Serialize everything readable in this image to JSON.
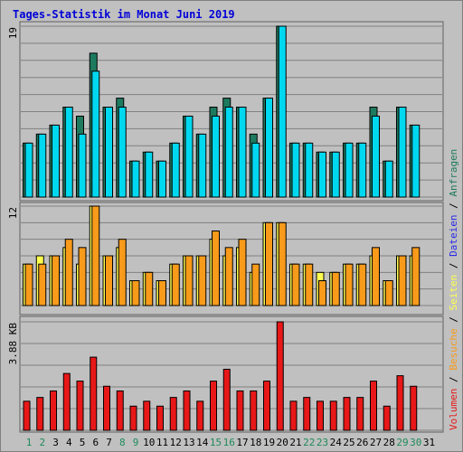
{
  "title": "Tages-Statistik im Monat Juni 2019",
  "colors": {
    "anfragen": "#1e7a5e",
    "dateien": "#00d8f0",
    "seiten": "#ffff50",
    "besuche": "#f89a1a",
    "volumen": "#e81818",
    "weekend_label": "#1e8a5a",
    "weekday_label": "#000000",
    "legend_separator": "#000000"
  },
  "chart_data": [
    {
      "type": "bar",
      "panel": "top",
      "ytick_label": "19",
      "ylim": [
        0,
        19
      ],
      "categories": [
        "1",
        "2",
        "3",
        "4",
        "5",
        "6",
        "7",
        "8",
        "9",
        "10",
        "11",
        "12",
        "13",
        "14",
        "15",
        "16",
        "17",
        "18",
        "19",
        "20",
        "21",
        "22",
        "23",
        "24",
        "25",
        "26",
        "27",
        "28",
        "29",
        "30",
        "31"
      ],
      "series": [
        {
          "name": "Anfragen",
          "values": [
            6,
            7,
            8,
            10,
            9,
            16,
            10,
            11,
            4,
            5,
            4,
            6,
            9,
            7,
            10,
            11,
            10,
            7,
            11,
            19,
            6,
            6,
            5,
            5,
            6,
            6,
            10,
            4,
            10,
            8,
            null
          ]
        },
        {
          "name": "Dateien",
          "values": [
            6,
            7,
            8,
            10,
            7,
            14,
            10,
            10,
            4,
            5,
            4,
            6,
            9,
            7,
            9,
            10,
            10,
            6,
            11,
            19,
            6,
            6,
            5,
            5,
            6,
            6,
            9,
            4,
            10,
            8,
            null
          ]
        }
      ]
    },
    {
      "type": "bar",
      "panel": "middle",
      "ytick_label": "12",
      "ylim": [
        0,
        12
      ],
      "categories": [
        "1",
        "2",
        "3",
        "4",
        "5",
        "6",
        "7",
        "8",
        "9",
        "10",
        "11",
        "12",
        "13",
        "14",
        "15",
        "16",
        "17",
        "18",
        "19",
        "20",
        "21",
        "22",
        "23",
        "24",
        "25",
        "26",
        "27",
        "28",
        "29",
        "30",
        "31"
      ],
      "series": [
        {
          "name": "Seiten",
          "values": [
            5,
            6,
            6,
            7,
            5,
            12,
            6,
            7,
            3,
            4,
            3,
            5,
            6,
            6,
            8,
            6,
            7,
            4,
            10,
            10,
            5,
            5,
            4,
            4,
            5,
            5,
            6,
            3,
            6,
            6,
            null
          ]
        },
        {
          "name": "Besuche",
          "values": [
            5,
            5,
            6,
            8,
            7,
            12,
            6,
            8,
            3,
            4,
            3,
            5,
            6,
            6,
            9,
            7,
            8,
            5,
            10,
            10,
            5,
            5,
            3,
            4,
            5,
            5,
            7,
            3,
            6,
            7,
            null
          ]
        }
      ]
    },
    {
      "type": "bar",
      "panel": "bottom",
      "ytick_label": "3.88 KB",
      "ylim": [
        0,
        4.85
      ],
      "categories": [
        "1",
        "2",
        "3",
        "4",
        "5",
        "6",
        "7",
        "8",
        "9",
        "10",
        "11",
        "12",
        "13",
        "14",
        "15",
        "16",
        "17",
        "18",
        "19",
        "20",
        "21",
        "22",
        "23",
        "24",
        "25",
        "26",
        "27",
        "28",
        "29",
        "30",
        "31"
      ],
      "series": [
        {
          "name": "Volumen",
          "values": [
            1.3,
            1.47,
            1.76,
            2.54,
            2.2,
            3.27,
            1.97,
            1.76,
            1.08,
            1.3,
            1.08,
            1.47,
            1.76,
            1.3,
            2.2,
            2.73,
            1.76,
            1.76,
            2.2,
            4.85,
            1.3,
            1.47,
            1.3,
            1.3,
            1.47,
            1.47,
            2.2,
            1.08,
            2.44,
            1.97,
            null
          ]
        }
      ]
    }
  ],
  "x_labels": [
    {
      "text": "1",
      "weekend": true
    },
    {
      "text": "2",
      "weekend": true
    },
    {
      "text": "3",
      "weekend": false
    },
    {
      "text": "4",
      "weekend": false
    },
    {
      "text": "5",
      "weekend": false
    },
    {
      "text": "6",
      "weekend": false
    },
    {
      "text": "7",
      "weekend": false
    },
    {
      "text": "8",
      "weekend": true
    },
    {
      "text": "9",
      "weekend": true
    },
    {
      "text": "10",
      "weekend": false
    },
    {
      "text": "11",
      "weekend": false
    },
    {
      "text": "12",
      "weekend": false
    },
    {
      "text": "13",
      "weekend": false
    },
    {
      "text": "14",
      "weekend": false
    },
    {
      "text": "15",
      "weekend": true
    },
    {
      "text": "16",
      "weekend": true
    },
    {
      "text": "17",
      "weekend": false
    },
    {
      "text": "18",
      "weekend": false
    },
    {
      "text": "19",
      "weekend": false
    },
    {
      "text": "20",
      "weekend": false
    },
    {
      "text": "21",
      "weekend": false
    },
    {
      "text": "22",
      "weekend": true
    },
    {
      "text": "23",
      "weekend": true
    },
    {
      "text": "24",
      "weekend": false
    },
    {
      "text": "25",
      "weekend": false
    },
    {
      "text": "26",
      "weekend": false
    },
    {
      "text": "27",
      "weekend": false
    },
    {
      "text": "28",
      "weekend": false
    },
    {
      "text": "29",
      "weekend": true
    },
    {
      "text": "30",
      "weekend": true
    },
    {
      "text": "31",
      "weekend": false
    }
  ],
  "legend": [
    {
      "text": "Volumen",
      "color": "#e81818"
    },
    {
      "text": "/",
      "color": "#000000"
    },
    {
      "text": "Besuche",
      "color": "#f89a1a"
    },
    {
      "text": "/",
      "color": "#000000"
    },
    {
      "text": "Seiten",
      "color": "#ffff50"
    },
    {
      "text": "/",
      "color": "#000000"
    },
    {
      "text": "Dateien",
      "color": "#2828e8"
    },
    {
      "text": "/",
      "color": "#000000"
    },
    {
      "text": "Anfragen",
      "color": "#1e7a5e"
    }
  ]
}
